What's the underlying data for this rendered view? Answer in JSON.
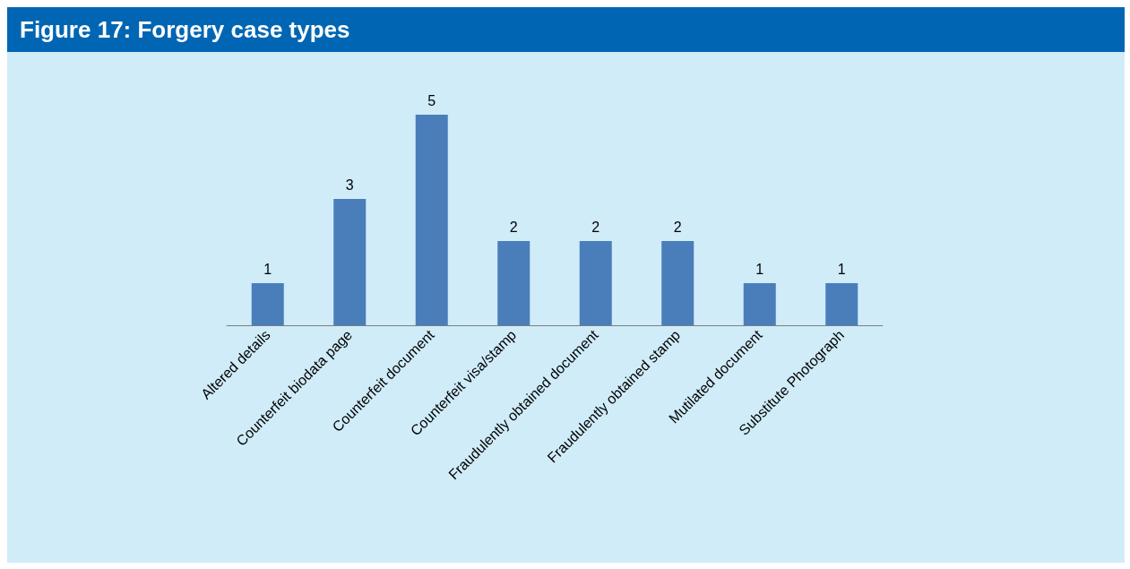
{
  "chart_data": {
    "type": "bar",
    "title": "Figure 17: Forgery case types",
    "categories": [
      "Altered details",
      "Counterfeit biodata page",
      "Counterfeit document",
      "Counterfeit visa/stamp",
      "Fraudulently obtained document",
      "Fraudulently obtained stamp",
      "Mutilated document",
      "Substitute Photograph"
    ],
    "values": [
      1,
      3,
      5,
      2,
      2,
      2,
      1,
      1
    ],
    "color": "#4a7ebb",
    "data_labels": true
  }
}
